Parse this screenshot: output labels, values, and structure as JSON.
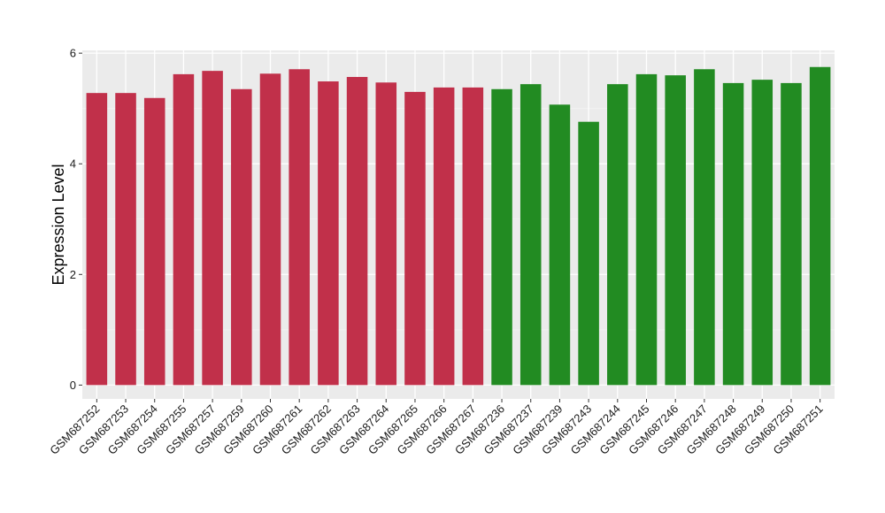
{
  "chart_data": {
    "type": "bar",
    "title": "",
    "xlabel": "",
    "ylabel": "Expression Level",
    "ylim": [
      -0.25,
      6.05
    ],
    "yticks": [
      0,
      2,
      4,
      6
    ],
    "yticks_labels": [
      "0",
      "2",
      "4",
      "6"
    ],
    "grid": true,
    "legend": "none",
    "categories": [
      "GSM687252",
      "GSM687253",
      "GSM687254",
      "GSM687255",
      "GSM687257",
      "GSM687259",
      "GSM687260",
      "GSM687261",
      "GSM687262",
      "GSM687263",
      "GSM687264",
      "GSM687265",
      "GSM687266",
      "GSM687267",
      "GSM687236",
      "GSM687237",
      "GSM687239",
      "GSM687243",
      "GSM687244",
      "GSM687245",
      "GSM687246",
      "GSM687247",
      "GSM687248",
      "GSM687249",
      "GSM687250",
      "GSM687251"
    ],
    "values": [
      5.28,
      5.28,
      5.19,
      5.62,
      5.68,
      5.35,
      5.63,
      5.71,
      5.49,
      5.57,
      5.47,
      5.3,
      5.38,
      5.38,
      5.35,
      5.44,
      5.07,
      4.76,
      5.44,
      5.62,
      5.6,
      5.71,
      5.46,
      5.52,
      5.46,
      5.75
    ],
    "groups": [
      "a",
      "a",
      "a",
      "a",
      "a",
      "a",
      "a",
      "a",
      "a",
      "a",
      "a",
      "a",
      "a",
      "a",
      "b",
      "b",
      "b",
      "b",
      "b",
      "b",
      "b",
      "b",
      "b",
      "b",
      "b",
      "b"
    ],
    "colors": {
      "a": "#c1304a",
      "b": "#228b22",
      "panel": "#ebebeb",
      "grid_major": "#ffffff",
      "grid_minor": "#f3f3f3"
    }
  }
}
